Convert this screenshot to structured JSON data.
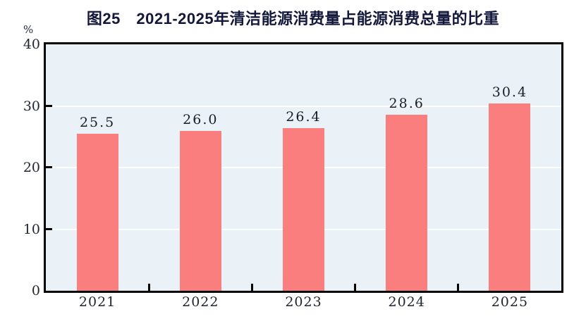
{
  "chart_data": {
    "type": "bar",
    "title": "图25　2021-2025年清洁能源消费量占能源消费总量的比重",
    "unit_label": "%",
    "categories": [
      "2021",
      "2022",
      "2023",
      "2024",
      "2025"
    ],
    "values": [
      25.5,
      26.0,
      26.4,
      28.6,
      30.4
    ],
    "value_labels": [
      "25.5",
      "26.0",
      "26.4",
      "28.6",
      "30.4"
    ],
    "xlabel": "",
    "ylabel": "%",
    "ylim": [
      0,
      40
    ],
    "yticks": [
      0,
      10,
      20,
      30,
      40
    ],
    "grid": "horizontal white gridlines at interior ticks",
    "legend": "none",
    "colors": {
      "bar": "#FB7E7E",
      "plot_background": "#EAF2F7",
      "gridline": "#FFFFFF",
      "axis_frame": "#000000",
      "title_text": "#13173A",
      "tick_text": "#1F2430",
      "value_label_text": "#1A1C28",
      "page_background": "#FFFFFF"
    }
  }
}
